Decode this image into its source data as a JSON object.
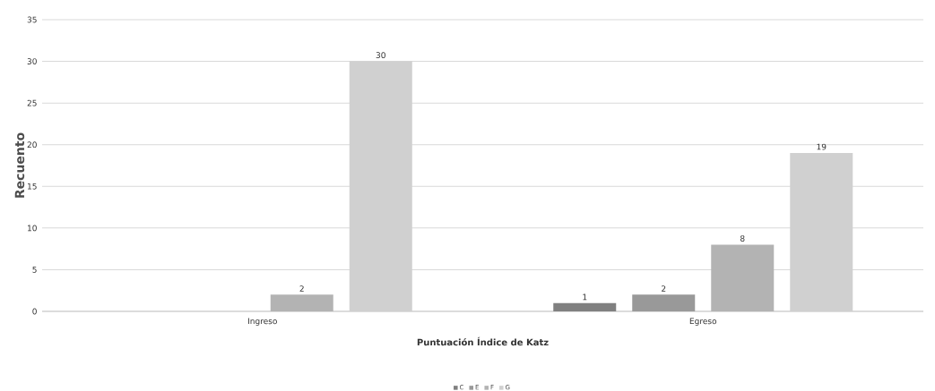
{
  "chart_data": {
    "type": "bar",
    "xlabel": "Puntuación Índice de Katz",
    "ylabel": "Recuento",
    "categories": [
      "Ingreso",
      "Egreso"
    ],
    "series": [
      {
        "name": "C",
        "color": "#808080",
        "values": [
          null,
          1
        ]
      },
      {
        "name": "E",
        "color": "#999999",
        "values": [
          null,
          2
        ]
      },
      {
        "name": "F",
        "color": "#b3b3b3",
        "values": [
          2,
          8
        ]
      },
      {
        "name": "G",
        "color": "#d0d0d0",
        "values": [
          30,
          19
        ]
      }
    ],
    "ylim": [
      0,
      35
    ],
    "yticks": [
      0,
      5,
      10,
      15,
      20,
      25,
      30,
      35
    ],
    "grid": "y",
    "legend": "bottom",
    "data_labels": true
  }
}
